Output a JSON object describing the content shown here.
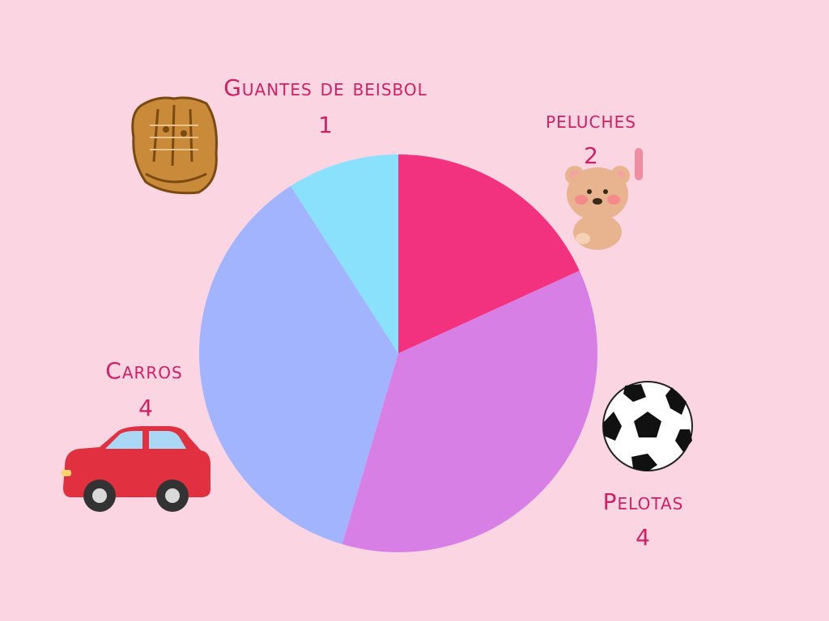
{
  "chart_data": {
    "type": "pie",
    "title": "",
    "slices": [
      {
        "label": "peluches",
        "value": 2,
        "color": "#f2317f",
        "icon": "teddy-bear-icon"
      },
      {
        "label": "Pelotas",
        "value": 4,
        "color": "#d87fe6",
        "icon": "soccer-ball-icon"
      },
      {
        "label": "Carros",
        "value": 4,
        "color": "#a3b4ff",
        "icon": "red-car-icon"
      },
      {
        "label": "Guantes de beisbol",
        "value": 1,
        "color": "#8ae1fc",
        "icon": "baseball-glove-icon"
      }
    ],
    "start_angle_deg": 0,
    "direction": "clockwise",
    "label_color": "#d01f63"
  }
}
